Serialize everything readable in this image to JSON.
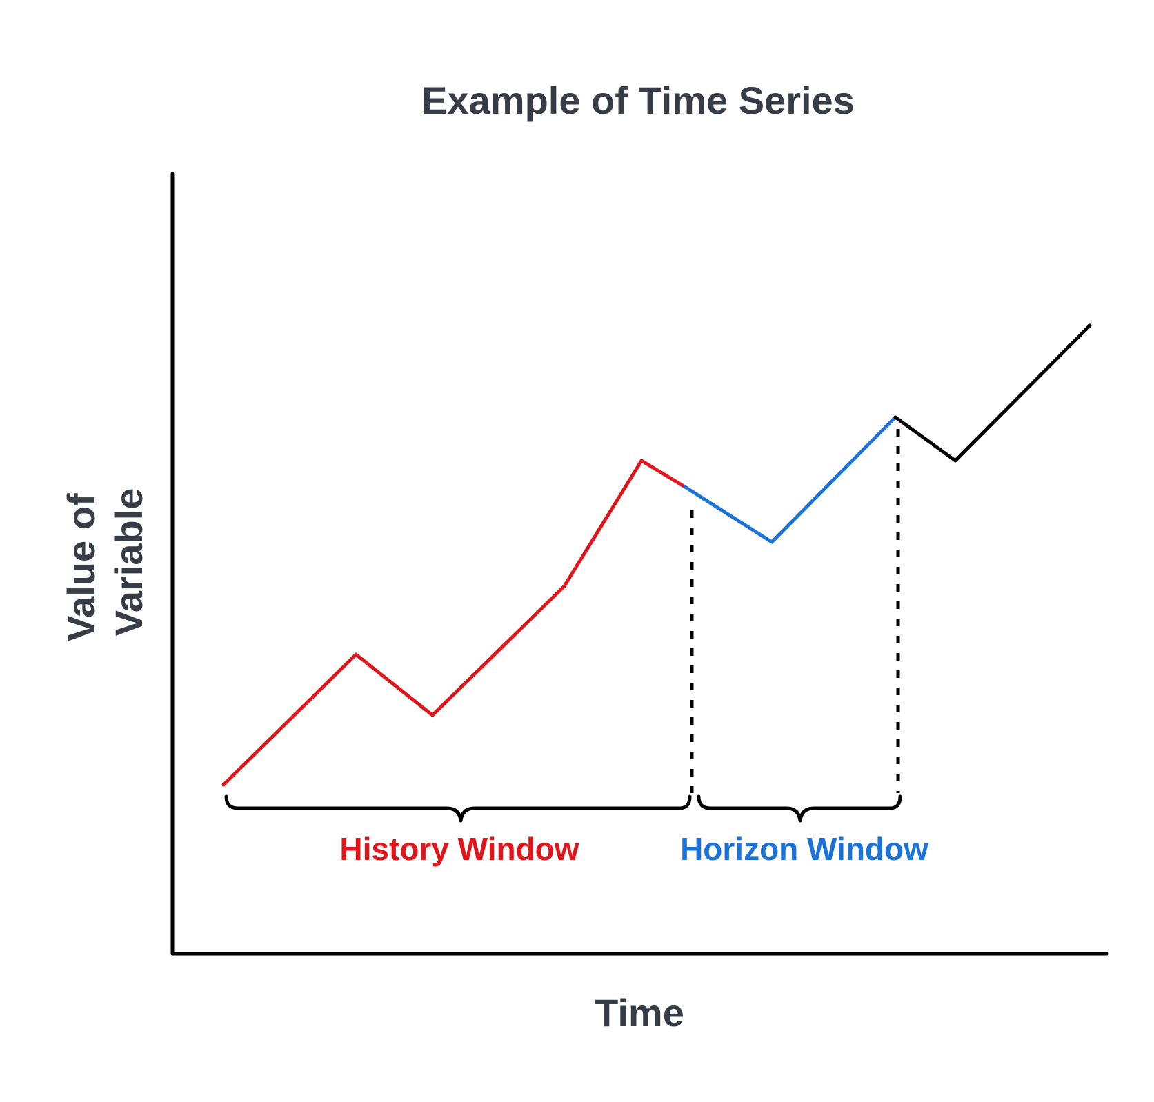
{
  "diagram": {
    "title": "Example of Time Series",
    "x_axis_label": "Time",
    "y_axis_label_lines": [
      "Value of",
      "Variable"
    ],
    "history_label": "History Window",
    "horizon_label": "Horizon Window",
    "colors": {
      "text": "#363d47",
      "axis": "#000000",
      "history": "#e0161b",
      "horizon": "#1b73d9",
      "future": "#000000"
    },
    "segments": {
      "history": "red",
      "horizon": "blue",
      "after_horizon": "black"
    }
  }
}
